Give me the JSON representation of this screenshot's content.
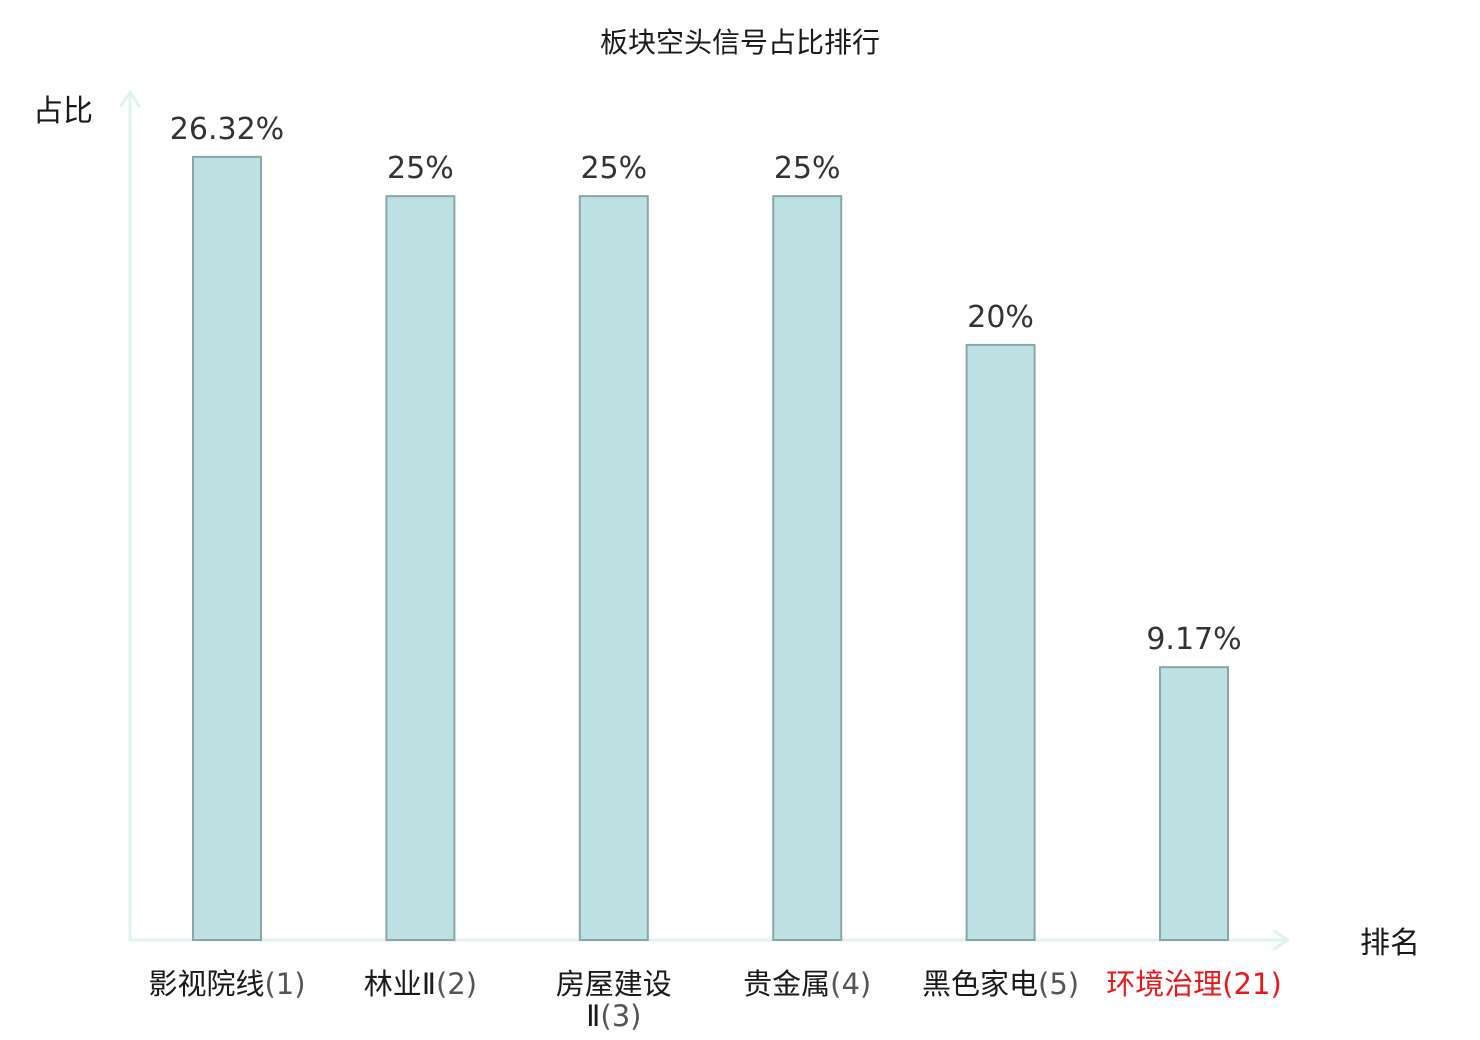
{
  "chart_data": {
    "type": "bar",
    "title": "板块空头信号占比排行",
    "ylabel": "占比",
    "xlabel": "排名",
    "ylim": [
      0,
      28.5
    ],
    "grid": false,
    "legend": "none",
    "bar_color": "#bde0e3",
    "axis_color": "#dff3f0",
    "highlight_color": "#e8191c",
    "categories": [
      {
        "name": "影视院线",
        "rank": "(1)",
        "highlight": false
      },
      {
        "name": "林业Ⅱ",
        "rank": "(2)",
        "highlight": false
      },
      {
        "name": "房屋建设Ⅱ",
        "rank": "(3)",
        "highlight": false
      },
      {
        "name": "贵金属",
        "rank": "(4)",
        "highlight": false
      },
      {
        "name": "黑色家电",
        "rank": "(5)",
        "highlight": false
      },
      {
        "name": "环境治理",
        "rank": "(21)",
        "highlight": true
      }
    ],
    "values": [
      26.32,
      25,
      25,
      25,
      20,
      9.17
    ],
    "value_labels": [
      "26.32%",
      "25%",
      "25%",
      "25%",
      "20%",
      "9.17%"
    ]
  }
}
